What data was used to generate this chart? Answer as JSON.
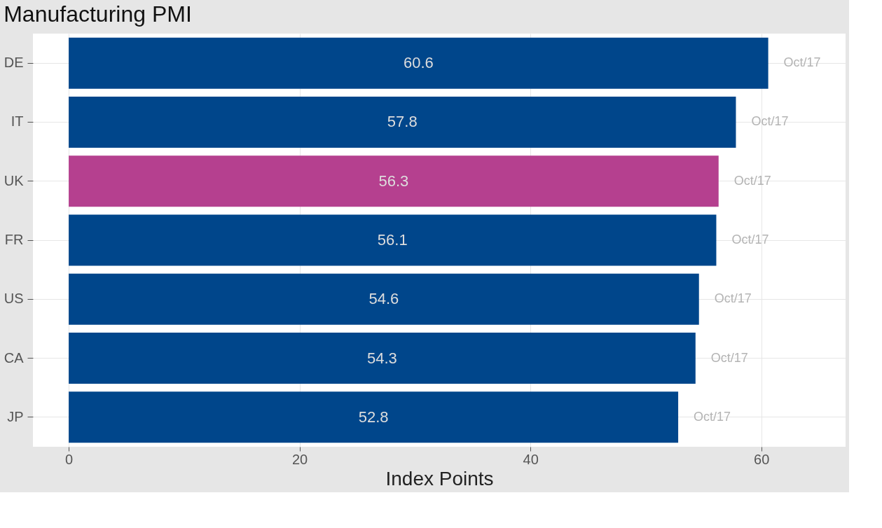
{
  "chart_data": {
    "type": "bar",
    "orientation": "horizontal",
    "title": "Manufacturing PMI",
    "xlabel": "Index Points",
    "categories": [
      "DE",
      "IT",
      "UK",
      "FR",
      "US",
      "CA",
      "JP"
    ],
    "values": [
      60.6,
      57.8,
      56.3,
      56.1,
      54.6,
      54.3,
      52.8
    ],
    "colors": [
      "#00468b",
      "#00468b",
      "#b5408f",
      "#00468b",
      "#00468b",
      "#00468b",
      "#00468b"
    ],
    "xlim": [
      -3.1,
      67.3
    ],
    "xticks": [
      0,
      20,
      40,
      60
    ],
    "grid": true,
    "data_labels": true,
    "annotations": [
      {
        "text": "Oct/17",
        "x": 60.6,
        "y": "DE"
      },
      {
        "text": "Oct/17",
        "x": 57.8,
        "y": "IT"
      },
      {
        "text": "Oct/17",
        "x": 56.3,
        "y": "UK"
      },
      {
        "text": "Oct/17",
        "x": 56.1,
        "y": "FR"
      },
      {
        "text": "Oct/17",
        "x": 54.6,
        "y": "US"
      },
      {
        "text": "Oct/17",
        "x": 54.3,
        "y": "CA"
      },
      {
        "text": "Oct/17",
        "x": 52.8,
        "y": "JP"
      }
    ]
  }
}
